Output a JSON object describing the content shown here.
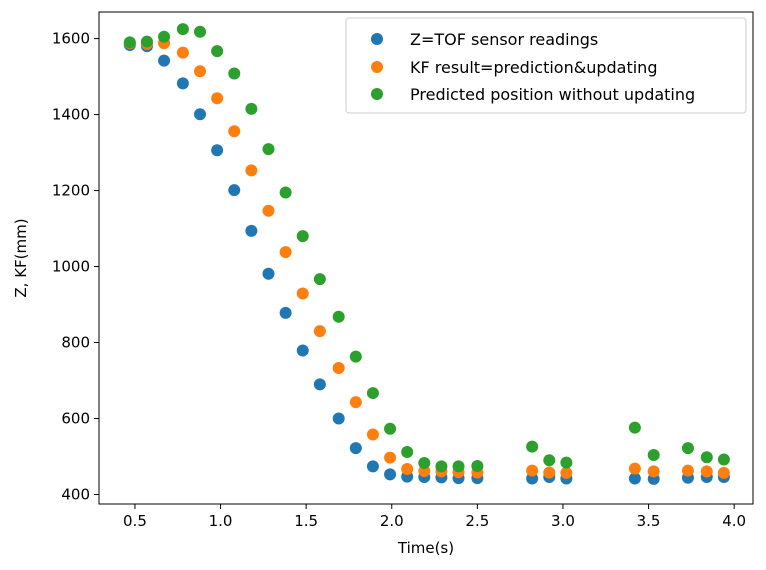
{
  "chart_data": {
    "type": "scatter",
    "xlabel": "Time(s)",
    "ylabel": "Z, KF(mm)",
    "xlim": [
      0.29,
      4.11
    ],
    "ylim": [
      375,
      1670
    ],
    "xticks": [
      0.5,
      1.0,
      1.5,
      2.0,
      2.5,
      3.0,
      3.5,
      4.0
    ],
    "xtick_labels": [
      "0.5",
      "1.0",
      "1.5",
      "2.0",
      "2.5",
      "3.0",
      "3.5",
      "4.0"
    ],
    "yticks": [
      400,
      600,
      800,
      1000,
      1200,
      1400,
      1600
    ],
    "ytick_labels": [
      "400",
      "600",
      "800",
      "1000",
      "1200",
      "1400",
      "1600"
    ],
    "grid": false,
    "legend_position": "top-right",
    "x": [
      0.47,
      0.57,
      0.67,
      0.78,
      0.88,
      0.98,
      1.08,
      1.18,
      1.28,
      1.38,
      1.48,
      1.58,
      1.69,
      1.79,
      1.89,
      1.99,
      2.09,
      2.19,
      2.29,
      2.39,
      2.5,
      2.82,
      2.92,
      3.02,
      3.42,
      3.53,
      3.73,
      3.84,
      3.94
    ],
    "series": [
      {
        "name": "Z=TOF sensor readings",
        "color": "#1f77b4",
        "values": [
          1583,
          1580,
          1542,
          1482,
          1401,
          1306,
          1201,
          1094,
          981,
          878,
          779,
          690,
          600,
          522,
          474,
          453,
          447,
          446,
          445,
          443,
          443,
          442,
          446,
          442,
          442,
          441,
          444,
          446,
          446
        ]
      },
      {
        "name": "KF result=prediction&updating",
        "color": "#ff7f0e",
        "values": [
          1588,
          1586,
          1588,
          1563,
          1514,
          1443,
          1356,
          1253,
          1147,
          1038,
          929,
          830,
          733,
          643,
          558,
          497,
          467,
          462,
          461,
          459,
          458,
          463,
          458,
          457,
          468,
          461,
          463,
          461,
          457
        ]
      },
      {
        "name": "Predicted position without updating",
        "color": "#2ca02c",
        "values": [
          1590,
          1592,
          1605,
          1625,
          1618,
          1567,
          1508,
          1415,
          1309,
          1195,
          1080,
          967,
          868,
          763,
          667,
          573,
          512,
          483,
          474,
          474,
          475,
          526,
          490,
          484,
          576,
          504,
          522,
          498,
          492
        ]
      }
    ]
  }
}
